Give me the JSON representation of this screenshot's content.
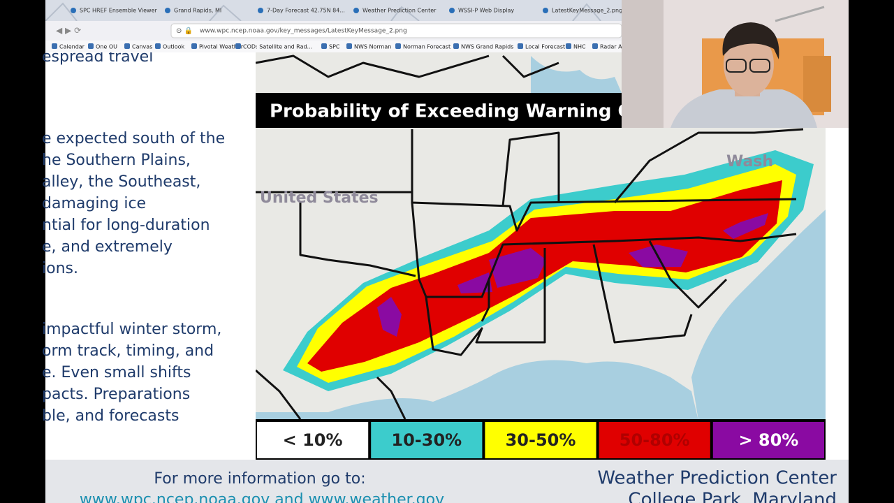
{
  "browser": {
    "tabs": [
      "SPC HREF Ensemble Viewer",
      "Grand Rapids, MI",
      "7-Day Forecast 42.75N 84...",
      "Weather Prediction Center",
      "WSSI-P Web Display",
      "LatestKeyMessage_2.png ("
    ],
    "url": "www.wpc.ncep.noaa.gov/key_messages/LatestKeyMessage_2.png",
    "bookmarks": [
      "Calendar",
      "One OU",
      "Canvas",
      "Outlook",
      "Pivotal Weather",
      "COD: Satellite and Rad...",
      "SPC",
      "NWS Norman",
      "Norman Forecast",
      "NWS Grand Rapids",
      "Local Forecast",
      "NHC",
      "Radar A"
    ]
  },
  "key_message": {
    "text_lines_top": [
      "espread travel"
    ],
    "text_lines_middle": [
      "e expected south of the",
      "he Southern Plains,",
      "alley, the Southeast,",
      "damaging ice",
      "ntial for long-duration",
      "e, and extremely",
      "ions."
    ],
    "text_lines_bottom": [
      "impactful winter storm,",
      "orm track, timing, and",
      "e. Even small shifts",
      "pacts. Preparations",
      "ble, and forecasts"
    ],
    "map_title": "Probability of Exceeding Warning Cri",
    "map_labels": [
      "United States",
      "Wash"
    ],
    "legend": [
      {
        "label": "< 10%",
        "color": "#ffffff"
      },
      {
        "label": "10-30%",
        "color": "#3ccccc"
      },
      {
        "label": "30-50%",
        "color": "#ffff00"
      },
      {
        "label": "50-80%",
        "color": "#e00000"
      },
      {
        "label": "> 80%",
        "color": "#8a0aa2"
      }
    ],
    "footer": {
      "info": "For more information go to:",
      "links": "www.wpc.ncep.noaa.gov and www.weather.gov",
      "org": "Weather Prediction Center",
      "location": "College Park, Maryland"
    }
  }
}
